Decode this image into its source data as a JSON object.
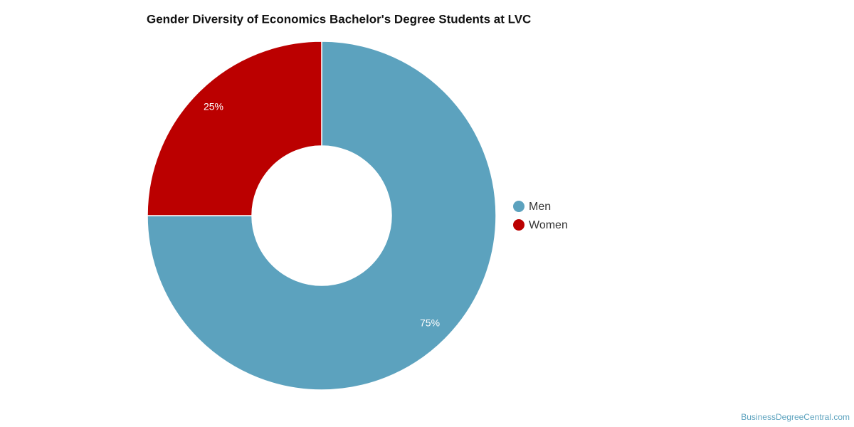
{
  "chart_data": {
    "type": "pie",
    "title": "Gender Diversity of Economics Bachelor's Degree Students at LVC",
    "categories": [
      "Men",
      "Women"
    ],
    "values": [
      75,
      25
    ],
    "value_labels": [
      "75%",
      "25%"
    ],
    "colors": [
      "#5ca2be",
      "#bb0000"
    ],
    "donut": true,
    "legend": "right",
    "source": "BusinessDegreeCentral.com"
  }
}
